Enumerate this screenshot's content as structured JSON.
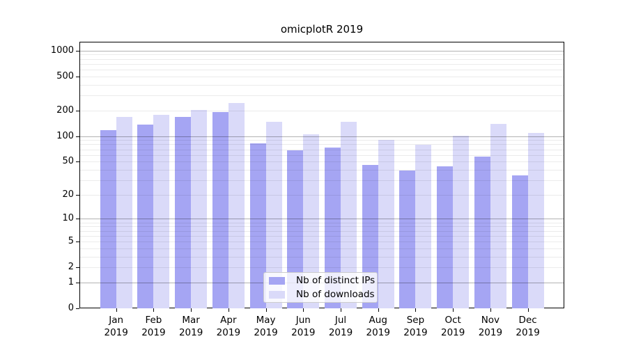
{
  "chart_data": {
    "type": "bar",
    "title": "omicplotR 2019",
    "year_label": "2019",
    "categories": [
      "Jan 2019",
      "Feb 2019",
      "Mar 2019",
      "Apr 2019",
      "May 2019",
      "Jun 2019",
      "Jul 2019",
      "Aug 2019",
      "Sep 2019",
      "Oct 2019",
      "Nov 2019",
      "Dec 2019"
    ],
    "month_labels": [
      "Jan",
      "Feb",
      "Mar",
      "Apr",
      "May",
      "Jun",
      "Jul",
      "Aug",
      "Sep",
      "Oct",
      "Nov",
      "Dec"
    ],
    "series": [
      {
        "name": "Nb of distinct IPs",
        "color": "#a5a5f3",
        "values": [
          117,
          137,
          169,
          193,
          83,
          68,
          74,
          46,
          39,
          44,
          57,
          34
        ]
      },
      {
        "name": "Nb of downloads",
        "color": "#dadaf9",
        "values": [
          168,
          178,
          204,
          244,
          148,
          106,
          148,
          91,
          79,
          101,
          139,
          110
        ]
      }
    ],
    "yscale": "log1p",
    "y_ticks": [
      0,
      1,
      2,
      5,
      10,
      20,
      50,
      100,
      200,
      500,
      1000
    ],
    "ylim": [
      0,
      1270
    ],
    "xlabel": "",
    "ylabel": "",
    "grid": "both",
    "legend_position": "lower-center",
    "colors": {
      "spine": "#000000",
      "major_grid": "#b3b3b3",
      "minor_grid": "#e8e8e8",
      "background": "#ffffff"
    }
  }
}
